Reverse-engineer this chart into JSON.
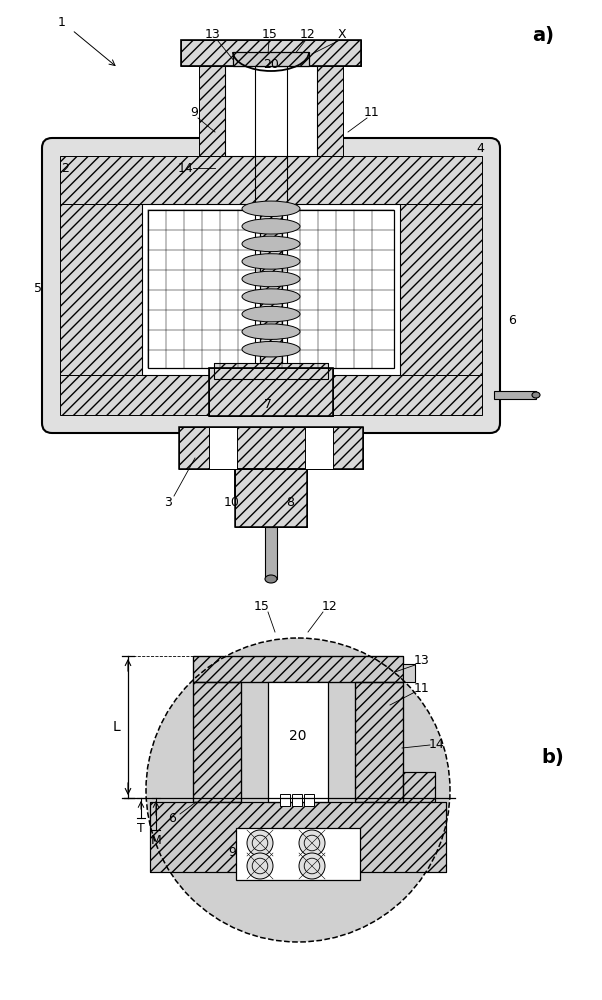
{
  "fig_width": 6.02,
  "fig_height": 10.0,
  "dpi": 100,
  "bg_color": "#ffffff",
  "line_color": "#000000",
  "hatch_color": "#000000",
  "label_a": "a)",
  "label_b": "b)",
  "dimension_labels": [
    "L",
    "T",
    "M"
  ]
}
